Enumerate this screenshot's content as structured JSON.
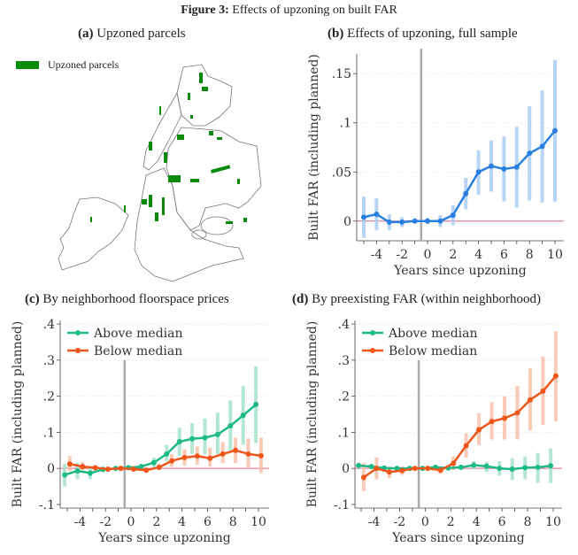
{
  "figure": {
    "label": "Figure 3:",
    "title": "Effects of upzoning on built FAR"
  },
  "panel_a": {
    "label": "(a)",
    "title": "Upzoned parcels",
    "legend": "Upzoned parcels",
    "parcel_color": "#0a8a0a"
  },
  "chart_data": [
    {
      "id": "b",
      "label": "(b)",
      "title": "Effects of upzoning, full sample",
      "type": "line",
      "xlabel": "Years since upzoning",
      "ylabel": "Built FAR (including planned)",
      "xlim": [
        -5,
        10
      ],
      "ylim": [
        -0.02,
        0.17
      ],
      "xticks": [
        -4,
        -2,
        0,
        2,
        4,
        6,
        8,
        10
      ],
      "xtick_labels": [
        "-4",
        "-2",
        "0",
        "2",
        "4",
        "6",
        "8",
        "10"
      ],
      "yticks": [
        0,
        0.05,
        0.1,
        0.15
      ],
      "ytick_labels": [
        "0",
        ".05",
        ".1",
        ".15"
      ],
      "event_line_x": -0.5,
      "zero_line": true,
      "grid": true,
      "x": [
        -5,
        -4,
        -3,
        -2,
        -1,
        0,
        1,
        2,
        3,
        4,
        5,
        6,
        7,
        8,
        9,
        10
      ],
      "series": [
        {
          "name": "Full sample",
          "color": "#2a7fe0",
          "ci_color": "#a9cdf5",
          "offset": 0,
          "values": [
            0.004,
            0.007,
            -0.001,
            -0.001,
            0,
            0,
            0,
            0.006,
            0.028,
            0.05,
            0.056,
            0.053,
            0.055,
            0.069,
            0.076,
            0.092
          ],
          "ci_low": [
            -0.017,
            -0.009,
            -0.009,
            -0.006,
            null,
            -0.003,
            -0.006,
            -0.004,
            0.012,
            0.027,
            0.03,
            0.02,
            0.014,
            0.021,
            0.019,
            0.02
          ],
          "ci_high": [
            0.025,
            0.023,
            0.007,
            0.004,
            null,
            0.003,
            0.006,
            0.016,
            0.044,
            0.072,
            0.082,
            0.086,
            0.096,
            0.117,
            0.133,
            0.164
          ]
        }
      ]
    },
    {
      "id": "c",
      "label": "(c)",
      "title": "By neighborhood floorspace prices",
      "type": "line",
      "xlabel": "Years since upzoning",
      "ylabel": "Built FAR (including planned)",
      "xlim": [
        -5,
        10
      ],
      "ylim": [
        -0.11,
        0.41
      ],
      "xticks": [
        -4,
        -2,
        0,
        2,
        4,
        6,
        8,
        10
      ],
      "xtick_labels": [
        "-4",
        "-2",
        "0",
        "2",
        "4",
        "6",
        "8",
        "10"
      ],
      "yticks": [
        -0.1,
        0,
        0.1,
        0.2,
        0.3,
        0.4
      ],
      "ytick_labels": [
        "-.1",
        "0",
        ".1",
        ".2",
        ".3",
        ".4"
      ],
      "event_line_x": -0.5,
      "zero_line": true,
      "grid": true,
      "legend_position": "top-left",
      "x": [
        -5,
        -4,
        -3,
        -2,
        -1,
        0,
        1,
        2,
        3,
        4,
        5,
        6,
        7,
        8,
        9,
        10
      ],
      "series": [
        {
          "name": "Above median",
          "color": "#1dba84",
          "ci_color": "#a6e3cc",
          "offset": -0.2,
          "values": [
            -0.018,
            -0.007,
            -0.013,
            -0.003,
            0,
            0.002,
            0.005,
            0.016,
            0.04,
            0.074,
            0.082,
            0.085,
            0.094,
            0.118,
            0.147,
            0.177
          ],
          "ci_low": [
            -0.05,
            -0.03,
            -0.03,
            -0.01,
            null,
            -0.003,
            -0.003,
            0.0,
            0.02,
            0.035,
            0.04,
            0.04,
            0.04,
            0.05,
            0.065,
            0.07
          ],
          "ci_high": [
            0.012,
            0.015,
            0.005,
            0.005,
            null,
            0.006,
            0.012,
            0.03,
            0.065,
            0.113,
            0.125,
            0.138,
            0.155,
            0.188,
            0.228,
            0.283
          ]
        },
        {
          "name": "Below median",
          "color": "#f0561a",
          "ci_color": "#f9c2aa",
          "offset": 0.2,
          "values": [
            0.012,
            0.005,
            0.002,
            -0.002,
            0,
            -0.002,
            -0.005,
            0.003,
            0.021,
            0.03,
            0.034,
            0.028,
            0.04,
            0.05,
            0.04,
            0.035
          ],
          "ci_low": [
            -0.008,
            -0.005,
            -0.005,
            -0.008,
            null,
            -0.006,
            -0.01,
            -0.005,
            0.005,
            0.008,
            0.01,
            0.005,
            0.015,
            0.015,
            0.003,
            -0.013
          ],
          "ci_high": [
            0.035,
            0.018,
            0.008,
            0.004,
            null,
            0.003,
            0.002,
            0.012,
            0.04,
            0.053,
            0.06,
            0.058,
            0.073,
            0.085,
            0.083,
            0.085
          ]
        }
      ]
    },
    {
      "id": "d",
      "label": "(d)",
      "title": "By preexisting FAR (within neighborhood)",
      "type": "line",
      "xlabel": "Years since upzoning",
      "ylabel": "Built FAR (including planned)",
      "xlim": [
        -5,
        10
      ],
      "ylim": [
        -0.11,
        0.41
      ],
      "xticks": [
        -4,
        -2,
        0,
        2,
        4,
        6,
        8,
        10
      ],
      "xtick_labels": [
        "-4",
        "-2",
        "0",
        "2",
        "4",
        "6",
        "8",
        "10"
      ],
      "yticks": [
        -0.1,
        0,
        0.1,
        0.2,
        0.3,
        0.4
      ],
      "ytick_labels": [
        "-.1",
        "0",
        ".1",
        ".2",
        ".3",
        ".4"
      ],
      "event_line_x": -0.5,
      "zero_line": true,
      "grid": true,
      "legend_position": "top-left",
      "x": [
        -5,
        -4,
        -3,
        -2,
        -1,
        0,
        1,
        2,
        3,
        4,
        5,
        6,
        7,
        8,
        9,
        10
      ],
      "series": [
        {
          "name": "Above median",
          "color": "#1dba84",
          "ci_color": "#a6e3cc",
          "offset": -0.2,
          "values": [
            0.008,
            0.005,
            0.001,
            0,
            0,
            0,
            0.003,
            0.001,
            0.003,
            0.009,
            0.006,
            0,
            -0.002,
            0.002,
            0.003,
            0.007
          ],
          "ci_low": [
            0.0,
            -0.002,
            -0.004,
            -0.004,
            null,
            -0.003,
            -0.002,
            -0.004,
            -0.004,
            -0.002,
            -0.01,
            -0.02,
            -0.032,
            -0.03,
            -0.04,
            -0.04
          ],
          "ci_high": [
            0.015,
            0.011,
            0.006,
            0.004,
            null,
            0.003,
            0.007,
            0.006,
            0.01,
            0.02,
            0.018,
            0.02,
            0.028,
            0.033,
            0.043,
            0.055
          ]
        },
        {
          "name": "Below median",
          "color": "#f0561a",
          "ci_color": "#f9c2aa",
          "offset": 0.2,
          "values": [
            -0.025,
            0,
            -0.01,
            -0.006,
            0,
            0,
            -0.005,
            0.014,
            0.063,
            0.107,
            0.13,
            0.139,
            0.154,
            0.19,
            0.214,
            0.256
          ],
          "ci_low": [
            -0.063,
            -0.03,
            -0.027,
            -0.018,
            null,
            -0.004,
            -0.015,
            -0.005,
            0.03,
            0.065,
            0.08,
            0.08,
            0.08,
            0.105,
            0.12,
            0.13
          ],
          "ci_high": [
            0.015,
            0.03,
            0.005,
            0.005,
            null,
            0.004,
            0.005,
            0.033,
            0.098,
            0.153,
            0.183,
            0.2,
            0.228,
            0.277,
            0.31,
            0.38
          ]
        }
      ]
    }
  ]
}
